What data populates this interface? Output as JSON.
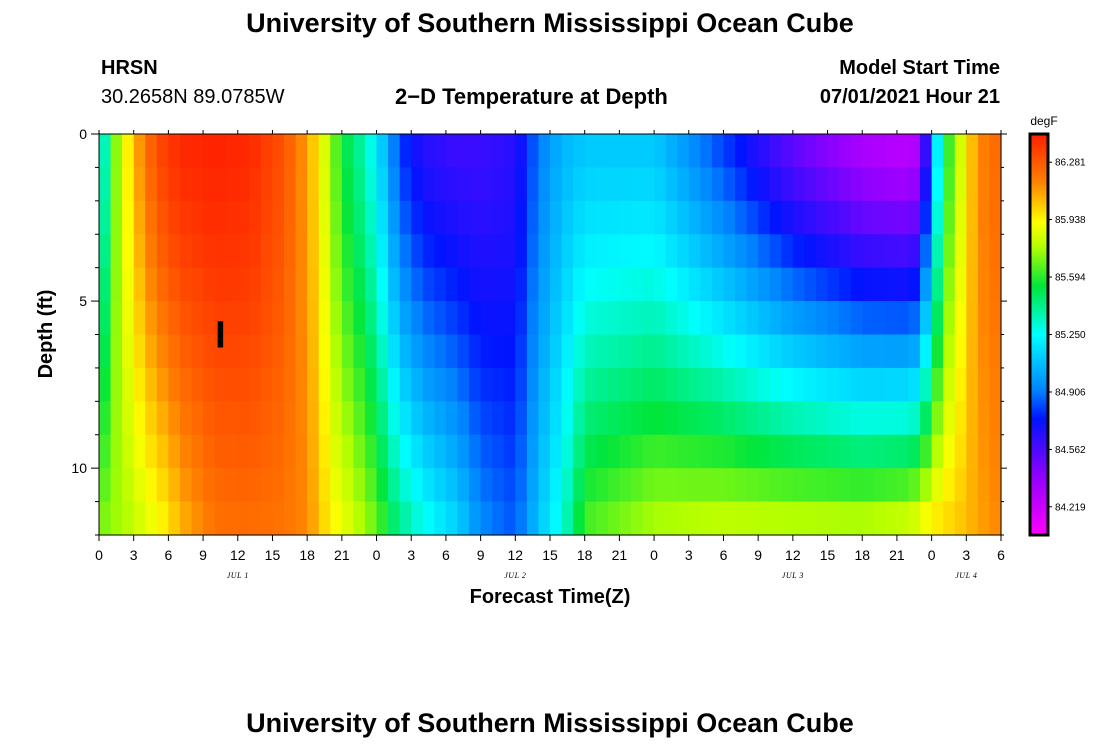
{
  "header": {
    "title_top": "University of Southern Mississippi Ocean Cube",
    "title_bottom": "University of Southern Mississippi Ocean Cube",
    "station": "HRSN",
    "coords": "30.2658N  89.0785W",
    "plot_title": "2−D Temperature at Depth",
    "model_start_label": "Model Start Time",
    "model_start_value": "07/01/2021 Hour 21"
  },
  "chart_data": {
    "type": "heatmap",
    "title": "2−D Temperature at Depth",
    "xlabel": "Forecast Time(Z)",
    "ylabel": "Depth (ft)",
    "x_range_hours": [
      0,
      78
    ],
    "y_range_ft": [
      0,
      12
    ],
    "x_tick_labels": [
      "0",
      "3",
      "6",
      "9",
      "12",
      "15",
      "18",
      "21",
      "0",
      "3",
      "6",
      "9",
      "12",
      "15",
      "18",
      "21",
      "0",
      "3",
      "6",
      "9",
      "12",
      "15",
      "18",
      "21",
      "0",
      "3",
      "6"
    ],
    "day_labels": [
      {
        "text": "JUL 1",
        "hour": 12
      },
      {
        "text": "JUL 2",
        "hour": 36
      },
      {
        "text": "JUL 3",
        "hour": 60
      },
      {
        "text": "JUL 4",
        "hour": 75
      }
    ],
    "y_ticks": [
      0,
      5,
      10
    ],
    "y_tick_labels": [
      "0",
      "5",
      "10"
    ],
    "colorbar": {
      "unit": "degF",
      "min": 84.05,
      "max": 86.45,
      "labels": [
        "86.281",
        "85.938",
        "85.594",
        "85.250",
        "84.906",
        "84.562",
        "84.219"
      ],
      "label_values": [
        86.281,
        85.938,
        85.594,
        85.25,
        84.906,
        84.562,
        84.219
      ]
    },
    "time_profiles": [
      {
        "hour": 0,
        "surface": 85.1,
        "bottom": 85.7
      },
      {
        "hour": 1,
        "surface": 85.6,
        "bottom": 85.75
      },
      {
        "hour": 2,
        "surface": 85.85,
        "bottom": 85.75
      },
      {
        "hour": 3,
        "surface": 86.05,
        "bottom": 85.8
      },
      {
        "hour": 4,
        "surface": 86.2,
        "bottom": 85.85
      },
      {
        "hour": 5,
        "surface": 86.32,
        "bottom": 85.9
      },
      {
        "hour": 6,
        "surface": 86.38,
        "bottom": 85.95
      },
      {
        "hour": 7,
        "surface": 86.42,
        "bottom": 86.05
      },
      {
        "hour": 10,
        "surface": 86.44,
        "bottom": 86.2
      },
      {
        "hour": 13,
        "surface": 86.42,
        "bottom": 86.22
      },
      {
        "hour": 16,
        "surface": 86.3,
        "bottom": 86.2
      },
      {
        "hour": 18,
        "surface": 86.1,
        "bottom": 86.15
      },
      {
        "hour": 19,
        "surface": 85.95,
        "bottom": 86.05
      },
      {
        "hour": 20,
        "surface": 85.75,
        "bottom": 85.95
      },
      {
        "hour": 21,
        "surface": 85.55,
        "bottom": 85.9
      },
      {
        "hour": 22,
        "surface": 85.45,
        "bottom": 85.85
      },
      {
        "hour": 23,
        "surface": 85.35,
        "bottom": 85.75
      },
      {
        "hour": 24,
        "surface": 85.2,
        "bottom": 85.7
      },
      {
        "hour": 25,
        "surface": 85.0,
        "bottom": 85.55
      },
      {
        "hour": 26,
        "surface": 84.8,
        "bottom": 85.45
      },
      {
        "hour": 28,
        "surface": 84.65,
        "bottom": 85.3
      },
      {
        "hour": 31,
        "surface": 84.6,
        "bottom": 85.15
      },
      {
        "hour": 33,
        "surface": 84.6,
        "bottom": 84.95
      },
      {
        "hour": 36,
        "surface": 84.65,
        "bottom": 84.85
      },
      {
        "hour": 38,
        "surface": 84.9,
        "bottom": 85.1
      },
      {
        "hour": 40,
        "surface": 85.05,
        "bottom": 85.3
      },
      {
        "hour": 42,
        "surface": 85.1,
        "bottom": 85.65
      },
      {
        "hour": 48,
        "surface": 85.1,
        "bottom": 85.8
      },
      {
        "hour": 54,
        "surface": 84.8,
        "bottom": 85.85
      },
      {
        "hour": 60,
        "surface": 84.5,
        "bottom": 85.85
      },
      {
        "hour": 66,
        "surface": 84.3,
        "bottom": 85.85
      },
      {
        "hour": 70,
        "surface": 84.25,
        "bottom": 85.9
      },
      {
        "hour": 71,
        "surface": 84.3,
        "bottom": 85.95
      },
      {
        "hour": 72,
        "surface": 84.9,
        "bottom": 86.0
      },
      {
        "hour": 73,
        "surface": 85.5,
        "bottom": 86.0
      },
      {
        "hour": 75,
        "surface": 85.95,
        "bottom": 86.05
      },
      {
        "hour": 76,
        "surface": 86.15,
        "bottom": 86.1
      },
      {
        "hour": 78,
        "surface": 86.25,
        "bottom": 86.15
      }
    ],
    "annotation": {
      "text": "I",
      "hour": 10.5,
      "depth_ft": 6.0
    }
  }
}
